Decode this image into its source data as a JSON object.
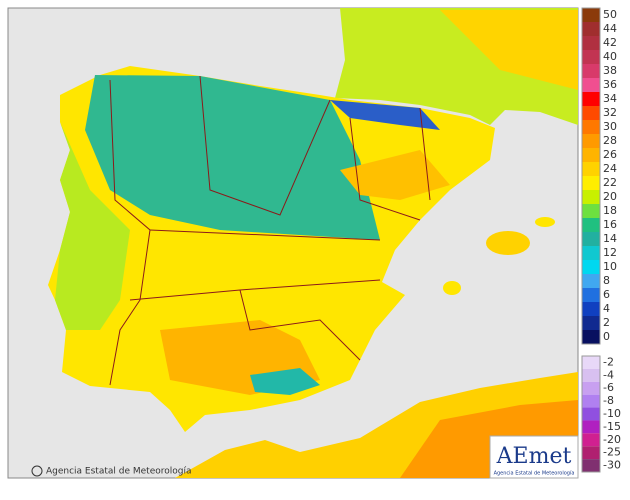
{
  "credit": "Agencia Estatal de Meteorología",
  "logo": {
    "name": "AEmet",
    "subtitle": "Agencia Estatal de Meteorología"
  },
  "legend": {
    "positive": [
      {
        "value": 50,
        "color": "#8b3a0a"
      },
      {
        "value": 44,
        "color": "#a02e2e"
      },
      {
        "value": 42,
        "color": "#b03040"
      },
      {
        "value": 40,
        "color": "#c23452"
      },
      {
        "value": 38,
        "color": "#d83a6a"
      },
      {
        "value": 36,
        "color": "#f04f90"
      },
      {
        "value": 34,
        "color": "#ff0000"
      },
      {
        "value": 32,
        "color": "#ff4a00"
      },
      {
        "value": 30,
        "color": "#ff7800"
      },
      {
        "value": 28,
        "color": "#ff9a00"
      },
      {
        "value": 26,
        "color": "#ffb400"
      },
      {
        "value": 24,
        "color": "#ffd200"
      },
      {
        "value": 22,
        "color": "#ffee00"
      },
      {
        "value": 20,
        "color": "#c8f000"
      },
      {
        "value": 18,
        "color": "#6ee040"
      },
      {
        "value": 16,
        "color": "#20c080"
      },
      {
        "value": 14,
        "color": "#22b0a0"
      },
      {
        "value": 12,
        "color": "#10c8d0"
      },
      {
        "value": 10,
        "color": "#00d8f0"
      },
      {
        "value": 8,
        "color": "#40a8f0"
      },
      {
        "value": 6,
        "color": "#2070e0"
      },
      {
        "value": 4,
        "color": "#1040c0"
      },
      {
        "value": 2,
        "color": "#102a90"
      },
      {
        "value": 0,
        "color": "#081060"
      }
    ],
    "negative": [
      {
        "value": -2,
        "color": "#e8d8f8"
      },
      {
        "value": -4,
        "color": "#d8c0f0"
      },
      {
        "value": -6,
        "color": "#c8a0f0"
      },
      {
        "value": -8,
        "color": "#b080f0"
      },
      {
        "value": -10,
        "color": "#9050e0"
      },
      {
        "value": -15,
        "color": "#b020c0"
      },
      {
        "value": -20,
        "color": "#d02090"
      },
      {
        "value": -25,
        "color": "#b02070"
      },
      {
        "value": -30,
        "color": "#803070"
      }
    ]
  }
}
